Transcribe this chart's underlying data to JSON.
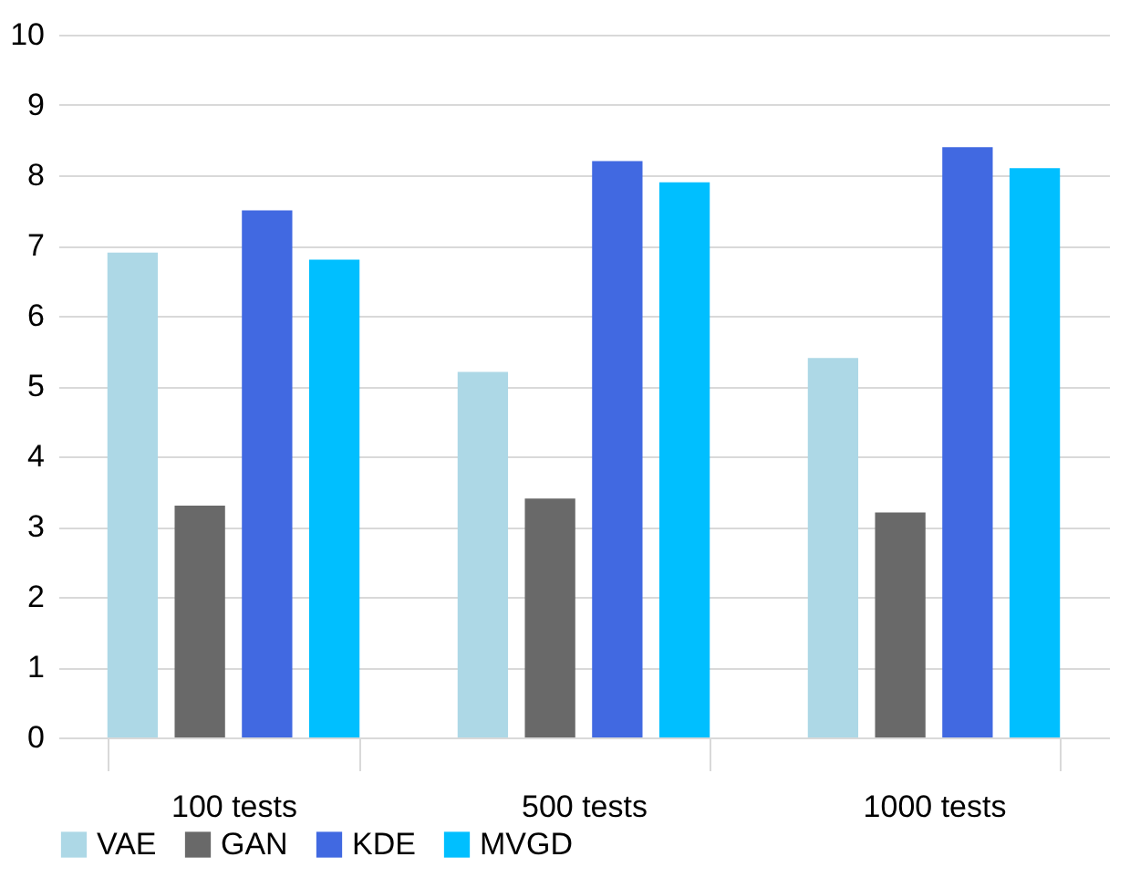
{
  "chart_data": {
    "type": "bar",
    "categories": [
      "100 tests",
      "500 tests",
      "1000 tests"
    ],
    "series": [
      {
        "name": "VAE",
        "color": "#add8e6",
        "values": [
          6.9,
          5.2,
          5.4
        ]
      },
      {
        "name": "GAN",
        "color": "#696969",
        "values": [
          3.3,
          3.4,
          3.2
        ]
      },
      {
        "name": "KDE",
        "color": "#4169e1",
        "values": [
          7.5,
          8.2,
          8.4
        ]
      },
      {
        "name": "MVGD",
        "color": "#00bfff",
        "values": [
          6.8,
          7.9,
          8.1
        ]
      }
    ],
    "ylim": [
      0,
      10
    ],
    "yticks": [
      0,
      1,
      2,
      3,
      4,
      5,
      6,
      7,
      8,
      9,
      10
    ],
    "grid": "y",
    "legend": "bottom"
  }
}
